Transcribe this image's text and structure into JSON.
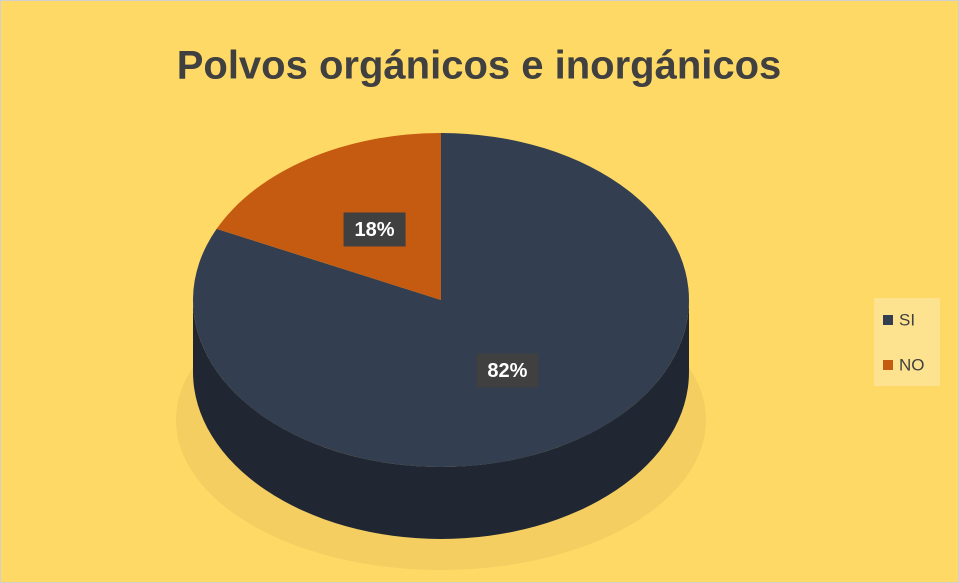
{
  "chart_data": {
    "type": "pie",
    "title": "Polvos orgánicos e inorgánicos",
    "categories": [
      "SI",
      "NO"
    ],
    "values": [
      82,
      18
    ],
    "value_labels": [
      "82%",
      "18%"
    ],
    "colors": [
      "#333f50",
      "#c55a11"
    ],
    "legend": "right"
  }
}
